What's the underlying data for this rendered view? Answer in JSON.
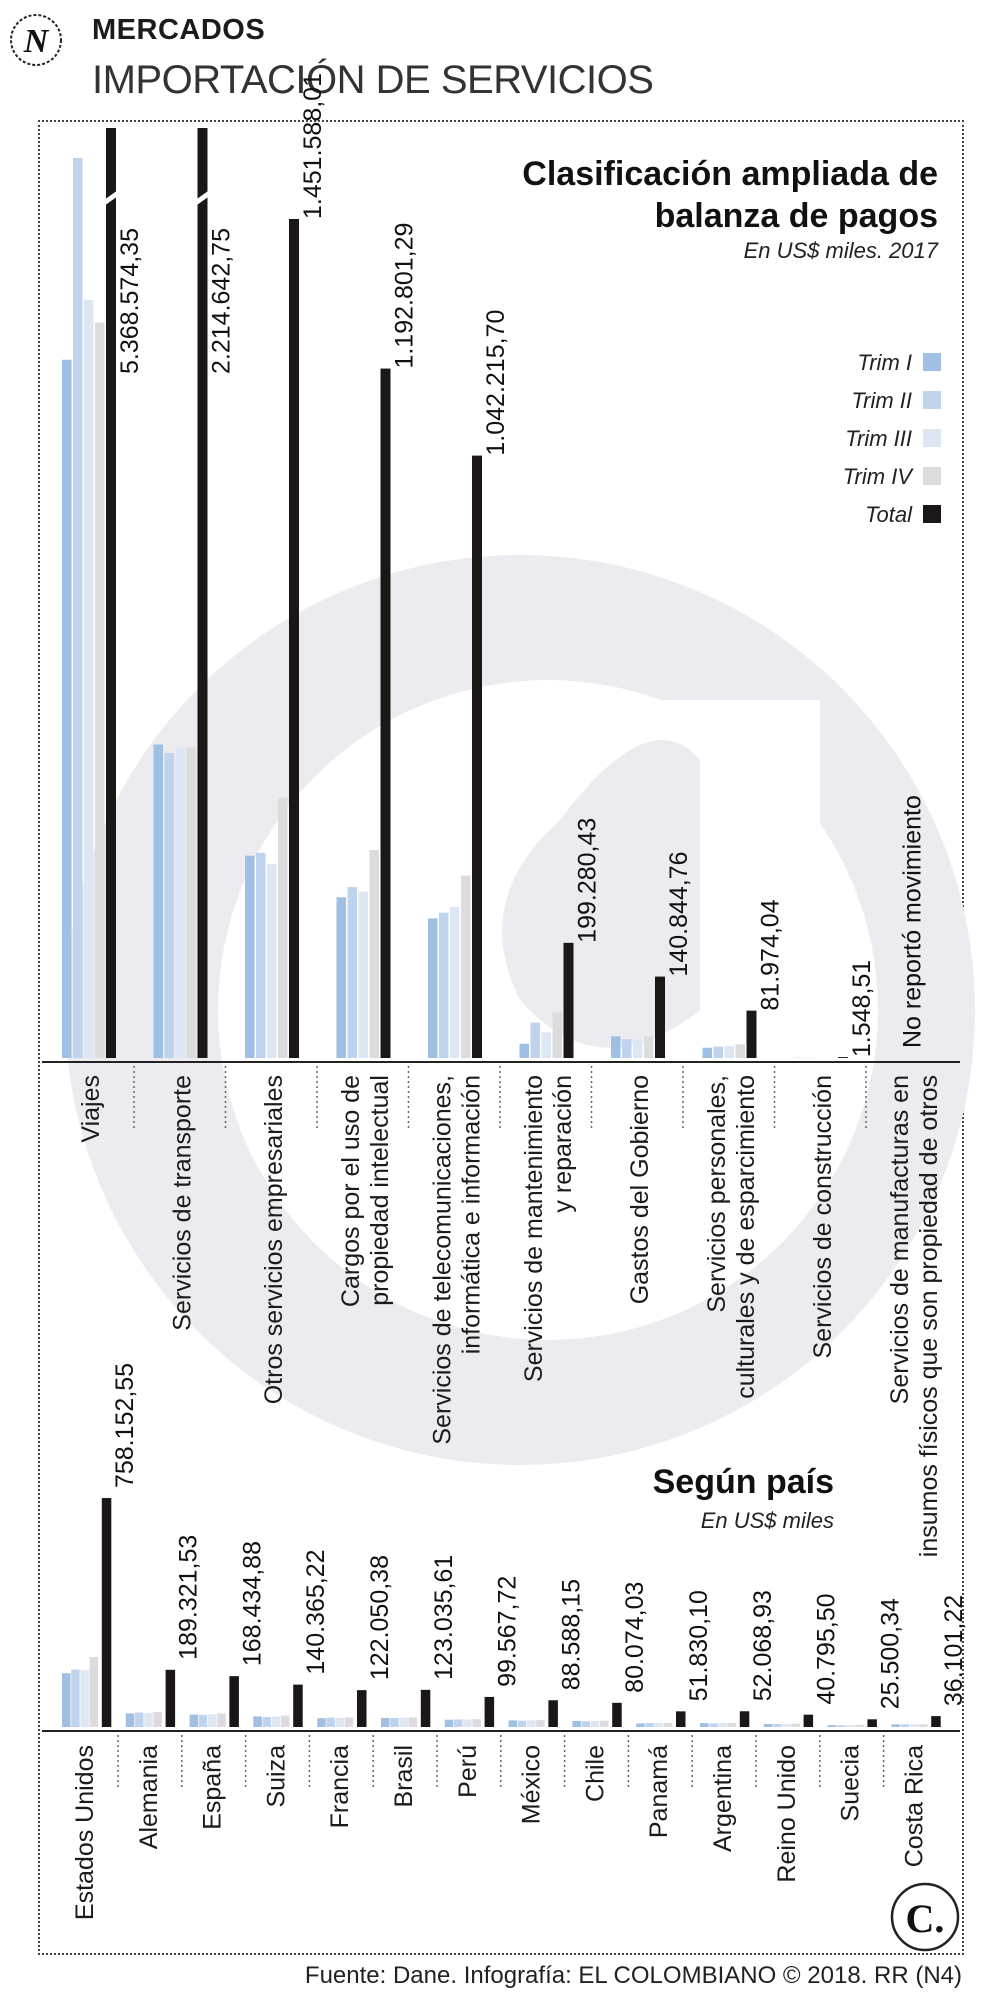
{
  "header": {
    "section": "MERCADOS",
    "title": "IMPORTACIÓN DE SERVICIOS",
    "logo_letter": "N"
  },
  "colors": {
    "trim1": "#9fbfe3",
    "trim2": "#bfd3ec",
    "trim3": "#dde7f4",
    "trim4": "#dcdcdc",
    "total": "#1c1717",
    "watermark": "#ececf0"
  },
  "legend": [
    "Trim I",
    "Trim II",
    "Trim III",
    "Trim IV",
    "Total"
  ],
  "chart_data": [
    {
      "type": "bar",
      "title": "Clasificación ampliada de balanza de pagos",
      "subtitle": "En US$ miles. 2017",
      "categories": [
        "Viajes",
        "Servicios de transporte",
        "Otros servicios empresariales",
        "Cargos por el uso de propiedad intelectual",
        "Servicios de telecomunicaciones, informática e información",
        "Servicios de mantenimiento y reparación",
        "Gastos del Gobierno",
        "Servicios personales, culturales y de esparcimiento",
        "Servicios de construcción",
        "Servicios de manufacturas en insumos físicos que son propiedad de otros"
      ],
      "value_labels": [
        "5.368.574,35",
        "2.214.642,75",
        "1.451.588,01",
        "1.192.801,29",
        "1.042.215,70",
        "199.280,43",
        "140.844,76",
        "81.974,04",
        "1.548,51",
        "No reportó movimiento"
      ],
      "series": [
        {
          "name": "Trim I",
          "values": [
            1225000,
            550000,
            355000,
            282000,
            245000,
            25000,
            38000,
            18000,
            400,
            0
          ]
        },
        {
          "name": "Trim II",
          "values": [
            1690000,
            535000,
            360000,
            300000,
            255000,
            62000,
            33000,
            20000,
            400,
            0
          ]
        },
        {
          "name": "Trim III",
          "values": [
            1330000,
            545000,
            340000,
            292000,
            265000,
            45000,
            32000,
            21000,
            350,
            0
          ]
        },
        {
          "name": "Trim IV",
          "values": [
            1290000,
            545000,
            457000,
            365000,
            320000,
            80000,
            38000,
            24000,
            400,
            0
          ]
        },
        {
          "name": "Total",
          "values": [
            5368574.35,
            2214642.75,
            1451588.01,
            1192801.29,
            1042215.7,
            199280.43,
            140844.76,
            81974.04,
            1548.51,
            0
          ]
        }
      ]
    },
    {
      "type": "bar",
      "title": "Según país",
      "subtitle": "En US$ miles",
      "categories": [
        "Estados Unidos",
        "Alemania",
        "España",
        "Suiza",
        "Francia",
        "Brasil",
        "Perú",
        "México",
        "Chile",
        "Panamá",
        "Argentina",
        "Reino Unido",
        "Suecia",
        "Costa Rica"
      ],
      "value_labels": [
        "758.152,55",
        "189.321,53",
        "168.434,88",
        "140.365,22",
        "122.050,38",
        "123.035,61",
        "99.567,72",
        "88.588,15",
        "80.074,03",
        "51.830,10",
        "52.068,93",
        "40.795,50",
        "25.500,34",
        "36.101,22"
      ],
      "series": [
        {
          "name": "Trim I",
          "values": [
            178000,
            45000,
            41000,
            35000,
            29000,
            30000,
            24000,
            22000,
            20000,
            12000,
            13000,
            10000,
            6000,
            9000
          ]
        },
        {
          "name": "Trim II",
          "values": [
            190000,
            48000,
            40000,
            33000,
            31000,
            30000,
            25000,
            21000,
            19000,
            13000,
            12000,
            10000,
            6000,
            9000
          ]
        },
        {
          "name": "Trim III",
          "values": [
            188000,
            46000,
            42000,
            35000,
            30000,
            31000,
            25000,
            22000,
            20000,
            13000,
            13000,
            10000,
            7000,
            9000
          ]
        },
        {
          "name": "Trim IV",
          "values": [
            232000,
            50000,
            45000,
            38000,
            32000,
            32000,
            26000,
            23000,
            21000,
            14000,
            14000,
            11000,
            7000,
            9000
          ]
        },
        {
          "name": "Total",
          "values": [
            758152.55,
            189321.53,
            168434.88,
            140365.22,
            122050.38,
            123035.61,
            99567.72,
            88588.15,
            80074.03,
            51830.1,
            52068.93,
            40795.5,
            25500.34,
            36101.22
          ]
        }
      ]
    }
  ],
  "footer": "Fuente: Dane. Infografía: EL COLOMBIANO © 2018. RR (N4)",
  "brand_letter": "C."
}
